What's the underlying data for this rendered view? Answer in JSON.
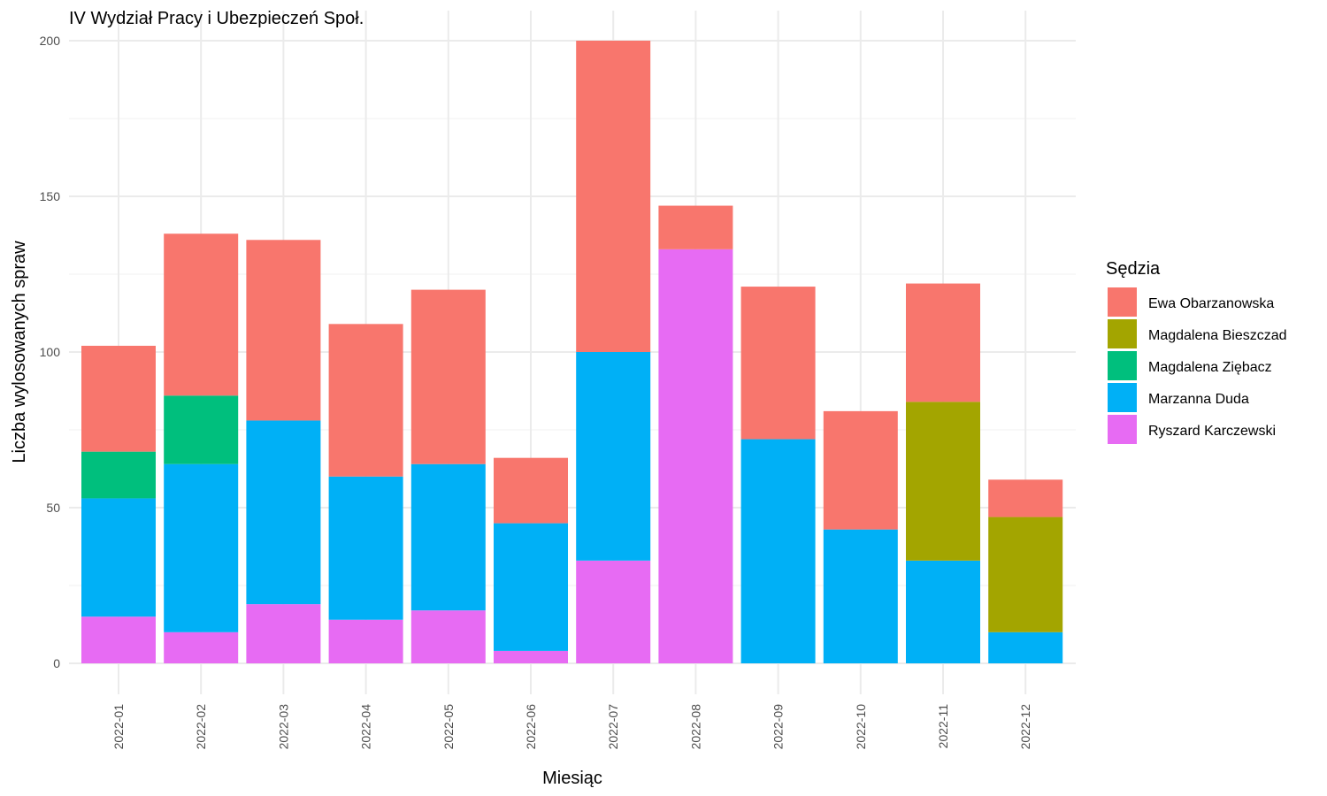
{
  "chart_data": {
    "type": "bar",
    "stacked": true,
    "title": "IV Wydział Pracy i Ubezpieczeń Społ.",
    "xlabel": "Miesiąc",
    "ylabel": "Liczba wylosowanych spraw",
    "ylim": [
      0,
      210
    ],
    "yticks": [
      0,
      50,
      100,
      150,
      200
    ],
    "grid": true,
    "legend_title": "Sędzia",
    "legend_position": "right",
    "categories": [
      "2022-01",
      "2022-02",
      "2022-03",
      "2022-04",
      "2022-05",
      "2022-06",
      "2022-07",
      "2022-08",
      "2022-09",
      "2022-10",
      "2022-11",
      "2022-12"
    ],
    "series": [
      {
        "name": "Ryszard Karczewski",
        "color": "#E76BF3",
        "values": [
          15,
          10,
          19,
          14,
          17,
          4,
          33,
          133,
          0,
          0,
          0,
          0
        ]
      },
      {
        "name": "Marzanna Duda",
        "color": "#00B0F6",
        "values": [
          38,
          54,
          59,
          46,
          47,
          41,
          67,
          0,
          72,
          43,
          33,
          10
        ]
      },
      {
        "name": "Magdalena Ziębacz",
        "color": "#00BF7D",
        "values": [
          15,
          22,
          0,
          0,
          0,
          0,
          0,
          0,
          0,
          0,
          0,
          0
        ]
      },
      {
        "name": "Magdalena Bieszczad",
        "color": "#A3A500",
        "values": [
          0,
          0,
          0,
          0,
          0,
          0,
          0,
          0,
          0,
          0,
          51,
          37
        ]
      },
      {
        "name": "Ewa Obarzanowska",
        "color": "#F8766D",
        "values": [
          34,
          52,
          58,
          49,
          56,
          21,
          100,
          14,
          49,
          38,
          38,
          12
        ]
      }
    ],
    "legend_order": [
      "Ewa Obarzanowska",
      "Magdalena Bieszczad",
      "Magdalena Ziębacz",
      "Marzanna Duda",
      "Ryszard Karczewski"
    ]
  }
}
